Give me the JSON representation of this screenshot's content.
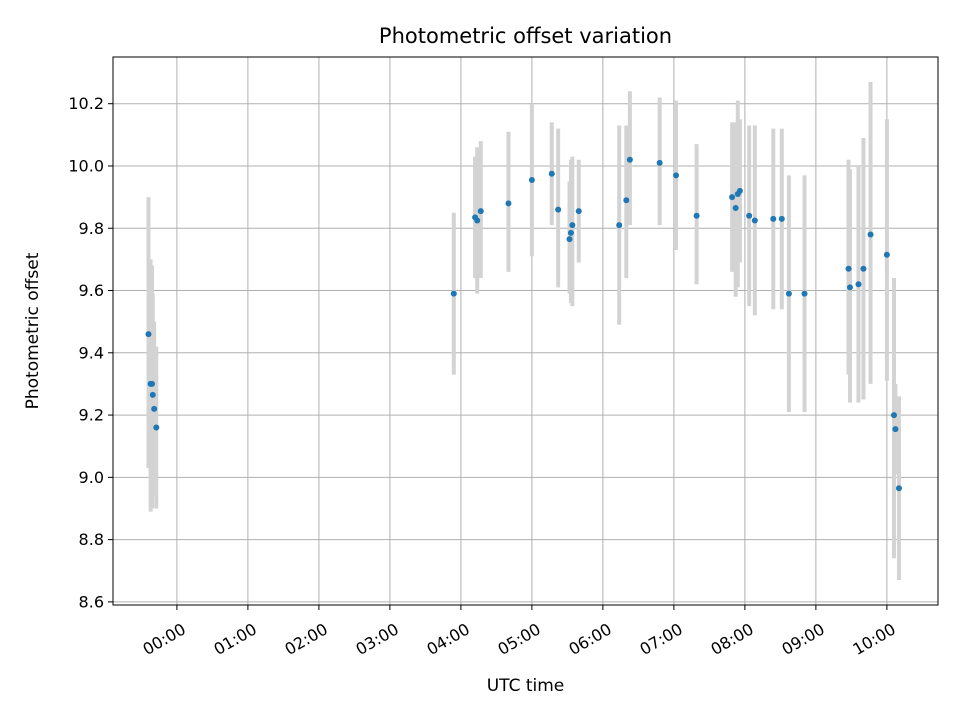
{
  "chart_data": {
    "type": "scatter",
    "title": "Photometric offset variation",
    "xlabel": "UTC time",
    "ylabel": "Photometric offset",
    "x_unit": "hours UTC",
    "xlim": [
      -0.9,
      10.72
    ],
    "ylim": [
      8.59,
      10.35
    ],
    "x_ticks": [
      {
        "value": 0,
        "label": "00:00"
      },
      {
        "value": 1,
        "label": "01:00"
      },
      {
        "value": 2,
        "label": "02:00"
      },
      {
        "value": 3,
        "label": "03:00"
      },
      {
        "value": 4,
        "label": "04:00"
      },
      {
        "value": 5,
        "label": "05:00"
      },
      {
        "value": 6,
        "label": "06:00"
      },
      {
        "value": 7,
        "label": "07:00"
      },
      {
        "value": 8,
        "label": "08:00"
      },
      {
        "value": 9,
        "label": "09:00"
      },
      {
        "value": 10,
        "label": "10:00"
      }
    ],
    "y_ticks": [
      {
        "value": 8.6,
        "label": "8.6"
      },
      {
        "value": 8.8,
        "label": "8.8"
      },
      {
        "value": 9.0,
        "label": "9.0"
      },
      {
        "value": 9.2,
        "label": "9.2"
      },
      {
        "value": 9.4,
        "label": "9.4"
      },
      {
        "value": 9.6,
        "label": "9.6"
      },
      {
        "value": 9.8,
        "label": "9.8"
      },
      {
        "value": 10.0,
        "label": "10.0"
      },
      {
        "value": 10.2,
        "label": "10.2"
      }
    ],
    "grid": true,
    "colors": {
      "point": "#1f77b4",
      "errorbar": "#d3d3d3",
      "grid": "#b0b0b0",
      "axis": "#000000"
    },
    "points": [
      {
        "x": -0.4,
        "y": 9.46,
        "low": 9.03,
        "high": 9.9
      },
      {
        "x": -0.37,
        "y": 9.3,
        "low": 8.89,
        "high": 9.7
      },
      {
        "x": -0.35,
        "y": 9.3,
        "low": 8.9,
        "high": 9.68
      },
      {
        "x": -0.34,
        "y": 9.265,
        "low": 8.94,
        "high": 9.59
      },
      {
        "x": -0.32,
        "y": 9.22,
        "low": 8.94,
        "high": 9.5
      },
      {
        "x": -0.29,
        "y": 9.16,
        "low": 8.9,
        "high": 9.42
      },
      {
        "x": 3.9,
        "y": 9.59,
        "low": 9.33,
        "high": 9.85
      },
      {
        "x": 4.2,
        "y": 9.835,
        "low": 9.64,
        "high": 10.03
      },
      {
        "x": 4.23,
        "y": 9.825,
        "low": 9.59,
        "high": 10.06
      },
      {
        "x": 4.28,
        "y": 9.855,
        "low": 9.64,
        "high": 10.08
      },
      {
        "x": 4.67,
        "y": 9.88,
        "low": 9.66,
        "high": 10.11
      },
      {
        "x": 5.0,
        "y": 9.955,
        "low": 9.71,
        "high": 10.2
      },
      {
        "x": 5.28,
        "y": 9.975,
        "low": 9.81,
        "high": 10.14
      },
      {
        "x": 5.37,
        "y": 9.86,
        "low": 9.61,
        "high": 10.12
      },
      {
        "x": 5.53,
        "y": 9.765,
        "low": 9.59,
        "high": 9.95
      },
      {
        "x": 5.55,
        "y": 9.785,
        "low": 9.56,
        "high": 10.02
      },
      {
        "x": 5.57,
        "y": 9.81,
        "low": 9.55,
        "high": 10.03
      },
      {
        "x": 5.66,
        "y": 9.855,
        "low": 9.69,
        "high": 10.02
      },
      {
        "x": 6.23,
        "y": 9.81,
        "low": 9.49,
        "high": 10.13
      },
      {
        "x": 6.33,
        "y": 9.89,
        "low": 9.64,
        "high": 10.13
      },
      {
        "x": 6.38,
        "y": 10.02,
        "low": 9.81,
        "high": 10.24
      },
      {
        "x": 6.8,
        "y": 10.01,
        "low": 9.81,
        "high": 10.22
      },
      {
        "x": 7.03,
        "y": 9.97,
        "low": 9.73,
        "high": 10.21
      },
      {
        "x": 7.32,
        "y": 9.84,
        "low": 9.62,
        "high": 10.07
      },
      {
        "x": 7.82,
        "y": 9.9,
        "low": 9.66,
        "high": 10.14
      },
      {
        "x": 7.87,
        "y": 9.865,
        "low": 9.58,
        "high": 10.14
      },
      {
        "x": 7.9,
        "y": 9.91,
        "low": 9.61,
        "high": 10.21
      },
      {
        "x": 7.93,
        "y": 9.92,
        "low": 9.69,
        "high": 10.15
      },
      {
        "x": 8.06,
        "y": 9.84,
        "low": 9.55,
        "high": 10.13
      },
      {
        "x": 8.14,
        "y": 9.825,
        "low": 9.52,
        "high": 10.13
      },
      {
        "x": 8.4,
        "y": 9.83,
        "low": 9.54,
        "high": 10.12
      },
      {
        "x": 8.52,
        "y": 9.83,
        "low": 9.54,
        "high": 10.12
      },
      {
        "x": 8.62,
        "y": 9.59,
        "low": 9.21,
        "high": 9.97
      },
      {
        "x": 8.84,
        "y": 9.59,
        "low": 9.21,
        "high": 9.97
      },
      {
        "x": 9.46,
        "y": 9.67,
        "low": 9.33,
        "high": 10.02
      },
      {
        "x": 9.48,
        "y": 9.61,
        "low": 9.24,
        "high": 9.99
      },
      {
        "x": 9.6,
        "y": 9.62,
        "low": 9.24,
        "high": 10.0
      },
      {
        "x": 9.67,
        "y": 9.67,
        "low": 9.25,
        "high": 10.09
      },
      {
        "x": 9.77,
        "y": 9.78,
        "low": 9.3,
        "high": 10.27
      },
      {
        "x": 10.0,
        "y": 9.715,
        "low": 9.31,
        "high": 10.15
      },
      {
        "x": 10.1,
        "y": 9.2,
        "low": 8.74,
        "high": 9.64
      },
      {
        "x": 10.12,
        "y": 9.155,
        "low": 9.01,
        "high": 9.3
      },
      {
        "x": 10.17,
        "y": 8.965,
        "low": 8.67,
        "high": 9.26
      }
    ]
  }
}
